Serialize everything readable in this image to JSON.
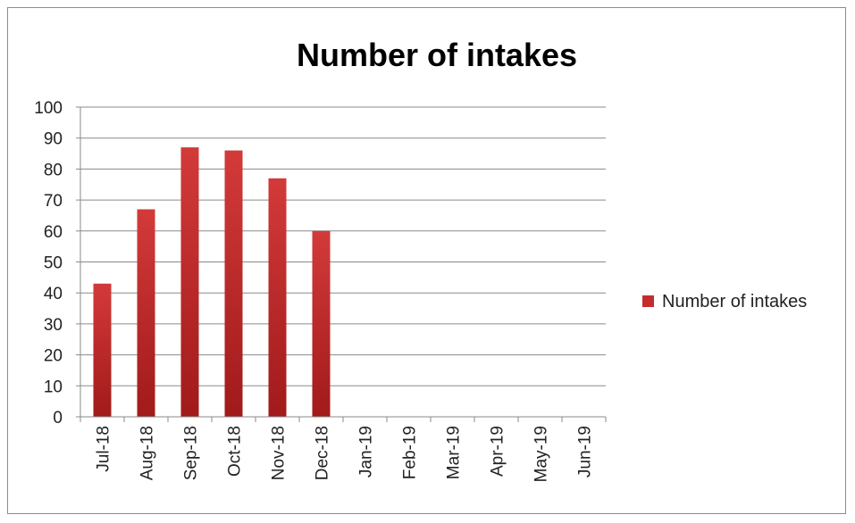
{
  "chart_data": {
    "type": "bar",
    "title": "Number of intakes",
    "categories": [
      "Jul-18",
      "Aug-18",
      "Sep-18",
      "Oct-18",
      "Nov-18",
      "Dec-18",
      "Jan-19",
      "Feb-19",
      "Mar-19",
      "Apr-19",
      "May-19",
      "Jun-19"
    ],
    "series": [
      {
        "name": "Number of intakes",
        "values": [
          43,
          67,
          87,
          86,
          77,
          60,
          null,
          null,
          null,
          null,
          null,
          null
        ],
        "color": "#c42d2d"
      }
    ],
    "ylim": [
      0,
      100
    ],
    "yticks": [
      "0",
      "10",
      "20",
      "30",
      "40",
      "50",
      "60",
      "70",
      "80",
      "90",
      "100"
    ],
    "grid": true,
    "legend_position": "right"
  }
}
